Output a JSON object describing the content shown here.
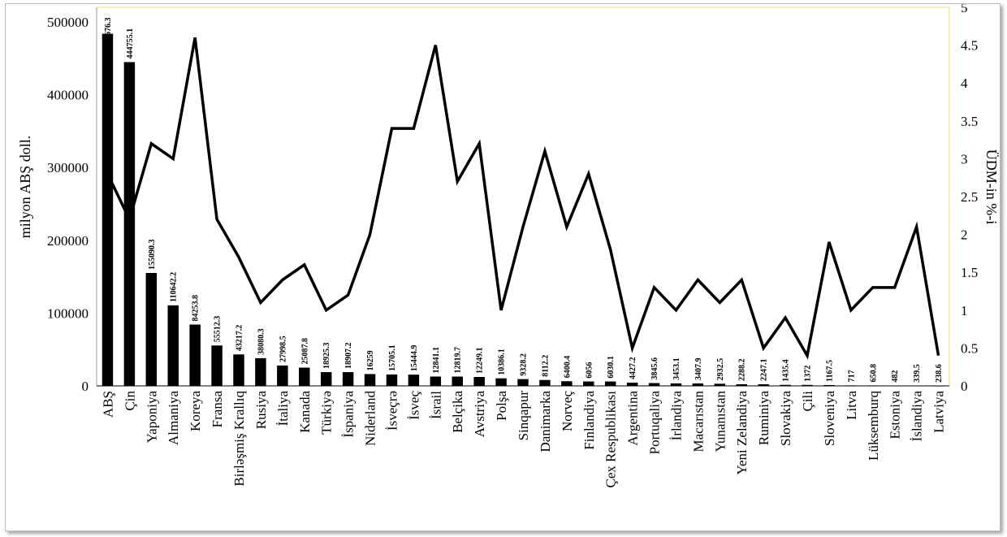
{
  "chart_data": {
    "type": "bar+line",
    "categories": [
      "ABŞ",
      "Çin",
      "Yaponiya",
      "Almaniya",
      "Koreya",
      "Fransa",
      "Birləşmiş Krallıq",
      "Rusiya",
      "İtaliya",
      "Kanada",
      "Türkiyə",
      "İspaniya",
      "Niderland",
      "İsveçrə",
      "İsveç",
      "İsrail",
      "Belçika",
      "Avstriya",
      "Polşa",
      "Sinqapur",
      "Danimarka",
      "Norveç",
      "Finlandiya",
      "Çex Respublikası",
      "Argentina",
      "Portuqaliya",
      "İrlandiya",
      "Macarıstan",
      "Yunanıstan",
      "Yeni Zelandiya",
      "Ruminiya",
      "Slovakiya",
      "Çili",
      "Sloveniya",
      "Litva",
      "Lüksemburq",
      "Estoniya",
      "İslandiya",
      "Latviya"
    ],
    "series": [
      {
        "axis": "left",
        "kind": "bar",
        "color": "#000000",
        "values": [
          483676.3,
          444755.1,
          155090.3,
          110642.2,
          84253.8,
          55512.3,
          43217.2,
          38080.3,
          27998.5,
          25087.8,
          18925.3,
          18907.2,
          16259,
          15705.1,
          15444.9,
          12841.1,
          12819.7,
          12249.1,
          10386.1,
          9328.2,
          8112.2,
          6400.4,
          6056,
          6030.1,
          4427.2,
          3845.6,
          3453.1,
          3407.9,
          2932.5,
          2288.2,
          2247.1,
          1435.4,
          1372,
          1167.5,
          717,
          650.8,
          482,
          339.5,
          238.6
        ],
        "labels": [
          "483676.3",
          "444755.1",
          "155090.3",
          "110642.2",
          "84253.8",
          "55512.3",
          "43217.2",
          "38080.3",
          "27998.5",
          "25087.8",
          "18925.3",
          "18907.2",
          "16259",
          "15705.1",
          "15444.9",
          "12841.1",
          "12819.7",
          "12249.1",
          "10386.1",
          "9328.2",
          "8112.2",
          "6400.4",
          "6056",
          "6030.1",
          "4427.2",
          "3845.6",
          "3453.1",
          "3407.9",
          "2932.5",
          "2288.2",
          "2247.1",
          "1435.4",
          "1372",
          "1167.5",
          "717",
          "650.8",
          "482",
          "339.5",
          "238.6"
        ]
      },
      {
        "axis": "right",
        "kind": "line",
        "color": "#000000",
        "values": [
          2.8,
          2.2,
          3.2,
          3.0,
          4.6,
          2.2,
          1.7,
          1.1,
          1.4,
          1.6,
          1.0,
          1.2,
          2.0,
          3.4,
          3.4,
          4.5,
          2.7,
          3.2,
          1.0,
          2.1,
          3.1,
          2.1,
          2.8,
          1.8,
          0.5,
          1.3,
          1.0,
          1.4,
          1.1,
          1.4,
          0.5,
          0.9,
          0.4,
          1.9,
          1.0,
          1.3,
          1.3,
          2.1,
          0.4
        ]
      }
    ],
    "ylabel_left": "milyon ABŞ doll.",
    "ylabel_right": "ÜDM-in %-i",
    "ylim_left": [
      0,
      520000
    ],
    "ylim_right": [
      0,
      5
    ],
    "yticks_left": [
      "0",
      "100000",
      "200000",
      "300000",
      "400000",
      "500000"
    ],
    "yticks_right": [
      "0",
      "0.5",
      "1",
      "1.5",
      "2",
      "2.5",
      "3",
      "3.5",
      "4",
      "4.5",
      "5"
    ],
    "plot_border_color": "#f2e08a",
    "grid": false,
    "legend": "none"
  }
}
